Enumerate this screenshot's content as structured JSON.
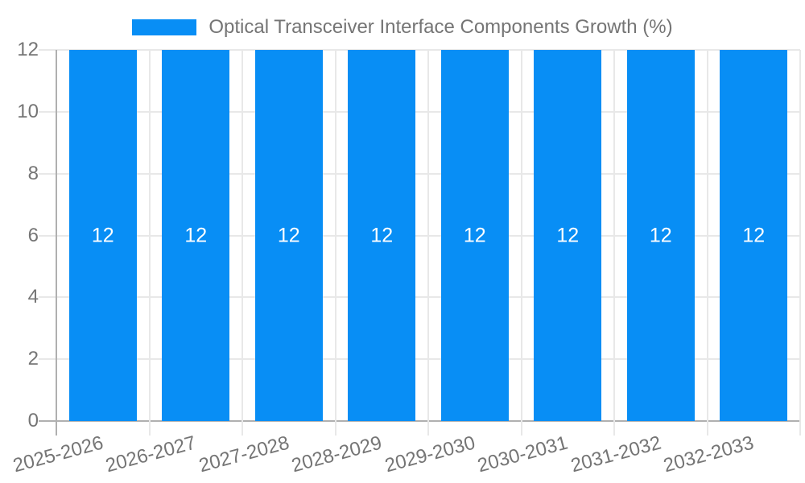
{
  "colors": {
    "bar": "#088ef5",
    "grid": "#e8e8e8",
    "axis": "#b0b0b0",
    "text": "#757575",
    "bar_label": "#ffffff",
    "background": "#ffffff"
  },
  "legend": {
    "label": "Optical Transceiver Interface Components Growth (%)"
  },
  "chart_data": {
    "type": "bar",
    "title": "Optical Transceiver Interface Components Growth (%)",
    "categories": [
      "2025-2026",
      "2026-2027",
      "2027-2028",
      "2028-2029",
      "2029-2030",
      "2030-2031",
      "2031-2032",
      "2032-2033"
    ],
    "values": [
      12,
      12,
      12,
      12,
      12,
      12,
      12,
      12
    ],
    "bar_value_labels": [
      "12",
      "12",
      "12",
      "12",
      "12",
      "12",
      "12",
      "12"
    ],
    "y_tick_labels": [
      "12",
      "10",
      "8",
      "6",
      "4",
      "2",
      "0"
    ],
    "ylim": [
      0,
      12
    ],
    "xlabel": "",
    "ylabel": "",
    "grid": true,
    "legend_position": "top",
    "x_tick_rotation_deg": -15,
    "bar_color": "#088ef5"
  }
}
